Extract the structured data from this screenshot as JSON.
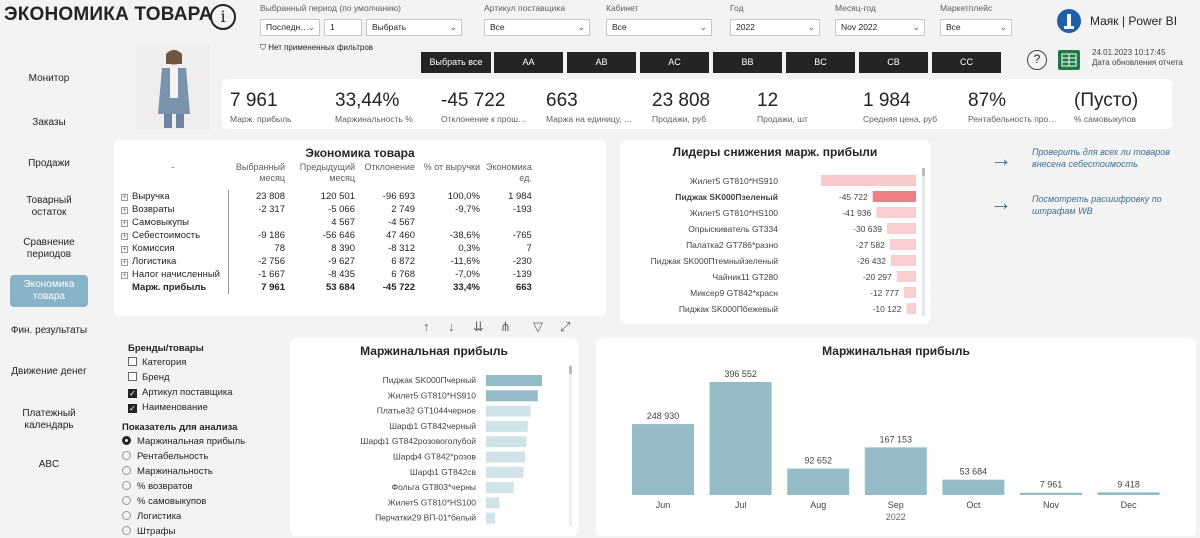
{
  "header": {
    "title": "ЭКОНОМИКА ТОВАРА",
    "info_glyph": "i",
    "logo_text": "Маяк | Power BI",
    "update_date": "24.01.2023 10:17:45",
    "update_label": "Дата обновления отчета",
    "help_glyph": "?"
  },
  "filters": {
    "period": {
      "label": "Выбранный период (по умолчанию)",
      "mode": "Последн…",
      "count": "1",
      "unit": "Выбрать"
    },
    "article": {
      "label": "Артикул поставщика",
      "value": "Все"
    },
    "cabinet": {
      "label": "Кабинет",
      "value": "Все"
    },
    "year": {
      "label": "Год",
      "value": "2022"
    },
    "month": {
      "label": "Месяц-год",
      "value": "Nov 2022"
    },
    "marketplace": {
      "label": "Маркетплейс",
      "value": "Все"
    },
    "no_filters": "Нет примененных фильтров"
  },
  "slicer": [
    "Выбрать все",
    "AA",
    "AB",
    "AC",
    "BB",
    "BC",
    "CB",
    "CC"
  ],
  "kpis": [
    {
      "value": "7 961",
      "label": "Марж. прибыль"
    },
    {
      "value": "33,44%",
      "label": "Маржинальность %"
    },
    {
      "value": "-45 722",
      "label": "Отклонение к прош…"
    },
    {
      "value": "663",
      "label": "Маржа на единицу, …"
    },
    {
      "value": "23 808",
      "label": "Продажи, руб"
    },
    {
      "value": "12",
      "label": "Продажи, шт"
    },
    {
      "value": "1 984",
      "label": "Средняя цена, руб"
    },
    {
      "value": "87%",
      "label": "Рентабельность про…"
    },
    {
      "value": "(Пусто)",
      "label": "% самовыкупов"
    }
  ],
  "nav": [
    "Монитор",
    "Заказы",
    "Продажи",
    "Товарный остаток",
    "Сравнение периодов",
    "Экономика товара",
    "Фин. результаты",
    "Движение денег",
    "Платежный календарь",
    "ABC"
  ],
  "economy": {
    "title": "Экономика товара",
    "headers": [
      "-",
      "Выбранный месяц",
      "Предыдущий месяц",
      "Отклонение",
      "% от выручки",
      "Экономика ед."
    ],
    "rows": [
      {
        "name": "Выручка",
        "v": [
          "23 808",
          "120 501",
          "-96 693",
          "100,0%",
          "1 984"
        ]
      },
      {
        "name": "Возвраты",
        "v": [
          "-2 317",
          "-5 066",
          "2 749",
          "-9,7%",
          "-193"
        ]
      },
      {
        "name": "Самовыкупы",
        "v": [
          "",
          "4 567",
          "-4 567",
          "",
          ""
        ]
      },
      {
        "name": "Себестоимость",
        "v": [
          "-9 186",
          "-56 646",
          "47 460",
          "-38,6%",
          "-765"
        ]
      },
      {
        "name": "Комиссия",
        "v": [
          "78",
          "8 390",
          "-8 312",
          "0,3%",
          "7"
        ]
      },
      {
        "name": "Логистика",
        "v": [
          "-2 756",
          "-9 627",
          "6 872",
          "-11,6%",
          "-230"
        ]
      },
      {
        "name": "Налог начисленный",
        "v": [
          "-1 667",
          "-8 435",
          "6 768",
          "-7,0%",
          "-139"
        ]
      }
    ],
    "total": {
      "name": "Марж. прибыль",
      "v": [
        "7 961",
        "53 684",
        "-45 722",
        "33,4%",
        "663"
      ]
    }
  },
  "leaders": {
    "title": "Лидеры снижения марж. прибыли",
    "items": [
      {
        "name": "Жилет5 GT810*HS910",
        "value": -100322,
        "label": ""
      },
      {
        "name": "Пиджак SK000Пзеленый",
        "value": -45722,
        "label": "-45 722"
      },
      {
        "name": "Жилет5 GT810*HS100",
        "value": -41936,
        "label": "-41 936"
      },
      {
        "name": "Опрыскиватель GT334",
        "value": -30639,
        "label": "-30 639"
      },
      {
        "name": "Палатка2 GT786*разно",
        "value": -27582,
        "label": "-27 582"
      },
      {
        "name": "Пиджак SK000Птемныйзеленый",
        "value": -26432,
        "label": "-26 432"
      },
      {
        "name": "Чайник11 GT280",
        "value": -20297,
        "label": "-20 297"
      },
      {
        "name": "Миксер9 GT842*красн",
        "value": -12777,
        "label": "-12 777"
      },
      {
        "name": "Пиджак SK000Пбежевый",
        "value": -10122,
        "label": "-10 122"
      }
    ]
  },
  "links": [
    "Проверить для всех ли товаров внесена себестоимость",
    "Посмотреть расшифровку по штрафам WB"
  ],
  "brand_filter": {
    "title": "Бренды/товары",
    "items": [
      {
        "label": "Категория",
        "checked": false
      },
      {
        "label": "Бренд",
        "checked": false
      },
      {
        "label": "Артикул поставщика",
        "checked": true
      },
      {
        "label": "Наименование",
        "checked": true
      }
    ]
  },
  "metric_filter": {
    "title": "Показатель для анализа",
    "items": [
      "Маржинальная прибыль",
      "Рентабельность",
      "Маржинальность",
      "% возвратов",
      "% самовыкупов",
      "Логистика",
      "Штрафы"
    ],
    "selected": 0
  },
  "chart_data": [
    {
      "type": "bar",
      "orientation": "horizontal",
      "title": "Маржинальная прибыль",
      "categories": [
        "Пиджак SK000Пчерный",
        "Жилет5 GT810*HS910",
        "Платье32 GT1044черное",
        "Шарф1 GT842черный",
        "Шарф1 GT842розовоголубой",
        "Шарф4 GT842*розов",
        "Шарф1 GT842св",
        "Фольга GT803*черны",
        "Жилет5 GT810*HS100",
        "Перчатки29 ВП-01*белый"
      ],
      "values": [
        3950,
        3650,
        3150,
        2950,
        2850,
        2750,
        2650,
        1950,
        950,
        650
      ]
    },
    {
      "type": "bar",
      "title": "Маржинальная прибыль",
      "categories": [
        "Jun",
        "Jul",
        "Aug",
        "Sep",
        "Oct",
        "Nov",
        "Dec"
      ],
      "values": [
        248930,
        396552,
        92652,
        167153,
        53684,
        7961,
        9418
      ],
      "labels": [
        "248 930",
        "396 552",
        "92 652",
        "167 153",
        "53 684",
        "7 961",
        "9 418"
      ],
      "xlabel": "2022",
      "ylim": [
        0,
        400000
      ]
    }
  ],
  "colors": {
    "accent": "#88b3c7",
    "bar_red": "#f4a6a8",
    "bar_red_strong": "#ee7f84",
    "bar_teal": "#95bcc6",
    "bar_light": "#cfe3e8"
  }
}
